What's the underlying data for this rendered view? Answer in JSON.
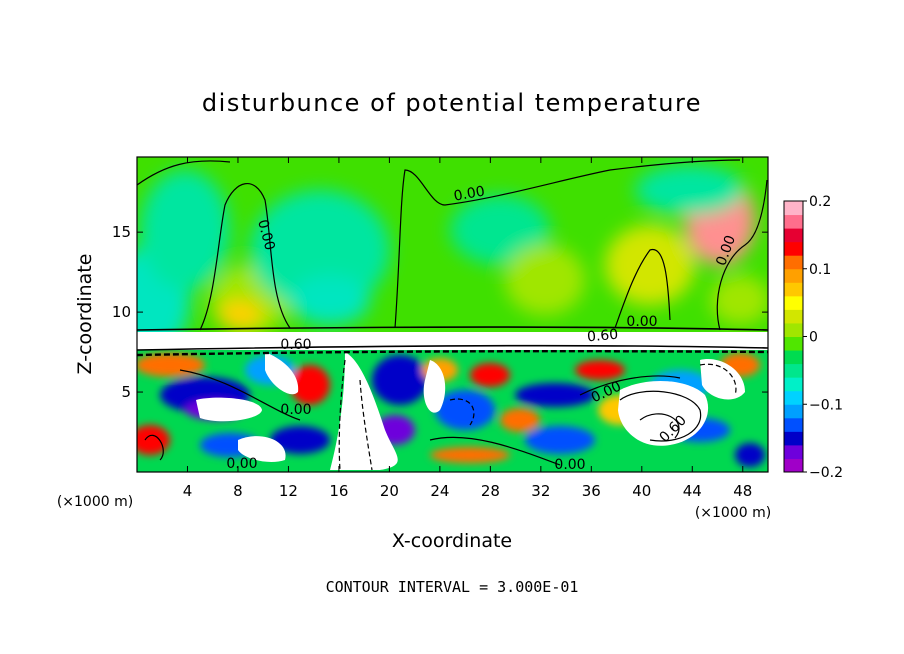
{
  "chart_data": {
    "type": "heatmap",
    "title": "disturbunce of potential temperature",
    "xlabel": "X-coordinate",
    "ylabel": "Z-coordinate",
    "x_unit": "(×1000 m)",
    "x_ticks": [
      4,
      8,
      12,
      16,
      20,
      24,
      28,
      32,
      36,
      40,
      44,
      48
    ],
    "y_ticks": [
      5,
      10,
      15
    ],
    "xlim": [
      0,
      50
    ],
    "ylim": [
      0,
      19.7
    ],
    "footer": "CONTOUR INTERVAL = 3.000E-01",
    "colorbar": {
      "range": [
        -0.2,
        0.2
      ],
      "tick_values": [
        0.2,
        0.1,
        0,
        -0.1,
        -0.2
      ],
      "tick_labels": [
        "0.2",
        "0.1",
        "0",
        "−0.1",
        "−0.2"
      ],
      "colors": [
        "#a000c8",
        "#6e00dc",
        "#0000c8",
        "#0050ff",
        "#00a0ff",
        "#00d2ff",
        "#00f0c8",
        "#00e68c",
        "#00dc50",
        "#50e600",
        "#a0e600",
        "#d2e600",
        "#ffff00",
        "#ffc800",
        "#ffa000",
        "#ff6e00",
        "#ff0000",
        "#e60032",
        "#ff6e8c",
        "#ffb4c8"
      ]
    },
    "contour_labels": [
      "0.00",
      "0.00",
      "0.00",
      "0.00",
      "0.00",
      "0.00",
      "0.00",
      "0.00",
      "0.60",
      "0.60",
      "0.60"
    ]
  }
}
